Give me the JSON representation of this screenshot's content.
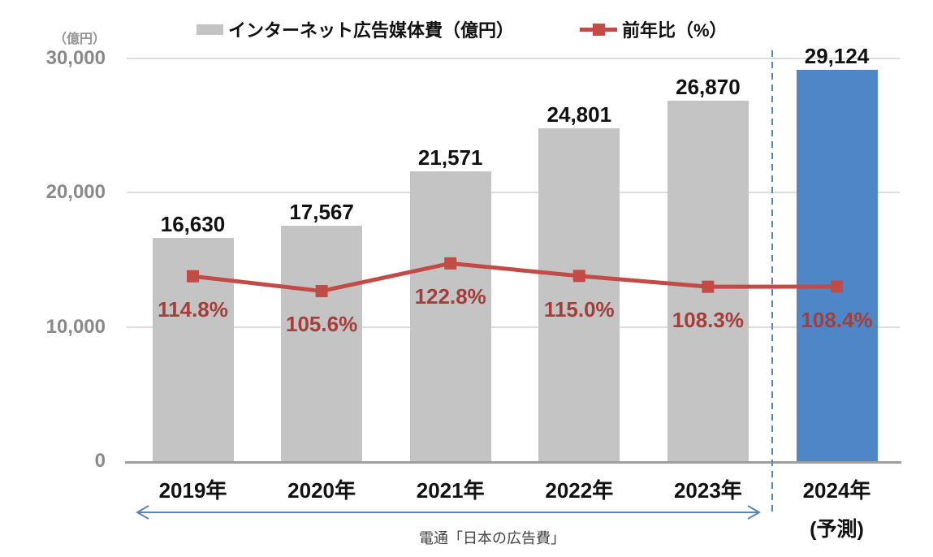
{
  "colors": {
    "bar_gray": "#C4C4C4",
    "bar_blue": "#4E86C8",
    "line_red": "#C24B45",
    "pct_label_red": "#A43E3A",
    "annotation_blue": "#5586C3",
    "grid_gray": "#DCDCDC",
    "axis_gray": "#9D9D9D"
  },
  "chart_data": {
    "type": "bar+line",
    "title": "",
    "categories": [
      "2019年",
      "2020年",
      "2021年",
      "2022年",
      "2023年",
      "2024年"
    ],
    "category_sublabels": [
      "",
      "",
      "",
      "",
      "",
      "(予測)"
    ],
    "forecast_index": 5,
    "series": [
      {
        "name": "インターネット広告媒体費（億円）",
        "type": "bar",
        "values": [
          16630,
          17567,
          21571,
          24801,
          26870,
          29124
        ],
        "labels": [
          "16,630",
          "17,567",
          "21,571",
          "24,801",
          "26,870",
          "29,124"
        ]
      },
      {
        "name": "前年比（%）",
        "type": "line",
        "values": [
          114.8,
          105.6,
          122.8,
          115.0,
          108.3,
          108.4
        ],
        "labels": [
          "114.8%",
          "105.6%",
          "122.8%",
          "115.0%",
          "108.3%",
          "108.4%"
        ]
      }
    ],
    "y_axis": {
      "unit": "（億円）",
      "range": [
        0,
        30000
      ],
      "ticks": [
        "0",
        "10,000",
        "20,000",
        "30,000"
      ],
      "tick_values": [
        0,
        10000,
        20000,
        30000
      ],
      "grid": true
    },
    "y2_axis": {
      "range": [
        0,
        250
      ],
      "ticks_visible": false
    },
    "legend_position": "top"
  },
  "annotation": {
    "source_note": "電通「日本の広告費」"
  }
}
